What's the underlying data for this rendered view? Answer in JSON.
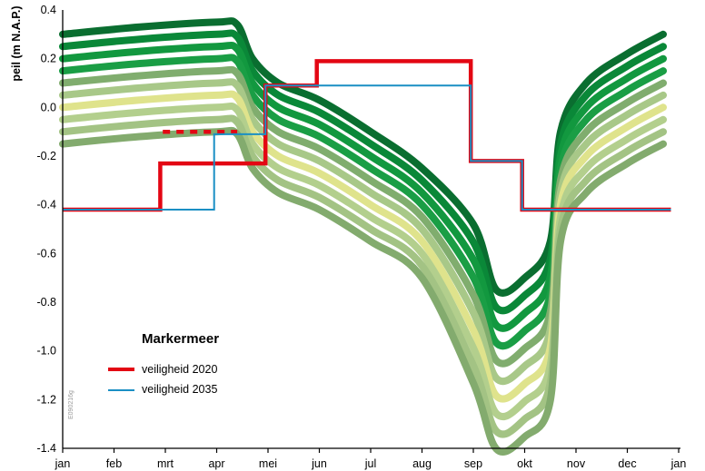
{
  "chart_data": {
    "type": "line",
    "title": "",
    "ylabel": "peil (m N.A.P.)",
    "xlabel": "",
    "ylim": [
      -1.4,
      0.4
    ],
    "yticks": [
      "0.4",
      "0.2",
      "0.0",
      "-0.2",
      "-0.4",
      "-0.6",
      "-0.8",
      "-1.0",
      "-1.2",
      "-1.4"
    ],
    "categories": [
      "jan",
      "feb",
      "mrt",
      "apr",
      "mei",
      "jun",
      "jul",
      "aug",
      "sep",
      "okt",
      "nov",
      "dec",
      "jan"
    ],
    "legend": {
      "title": "Markermeer",
      "entries": [
        {
          "label": "veiligheid 2020",
          "color": "#e30613"
        },
        {
          "label": "veiligheid 2035",
          "color": "#1a8fc4"
        }
      ]
    },
    "image_code": "E090216g",
    "band_offsets": [
      0,
      -0.05,
      -0.1,
      -0.15,
      -0.2,
      -0.25,
      -0.3,
      -0.35,
      -0.4,
      -0.45,
      -0.5,
      -0.55,
      -0.6,
      -0.65
    ],
    "band_colors": [
      "#0a6e30",
      "#0a8838",
      "#12983f",
      "#1a9e45",
      "#80ad6e",
      "#a8c888",
      "#dfe38c",
      "#b3cf8d",
      "#a3c384",
      "#83ab6e"
    ],
    "band_keys": [
      [
        0,
        0.3
      ],
      [
        1.5,
        0.33
      ],
      [
        3,
        0.35
      ],
      [
        3.4,
        0.34
      ],
      [
        3.7,
        0.2
      ],
      [
        4.2,
        0.1
      ],
      [
        5,
        0.03
      ],
      [
        6,
        -0.1
      ],
      [
        7,
        -0.25
      ],
      [
        8,
        -0.48
      ],
      [
        8.45,
        -0.75
      ],
      [
        9,
        -0.7
      ],
      [
        9.5,
        -0.55
      ],
      [
        9.7,
        -0.1
      ],
      [
        10.2,
        0.1
      ],
      [
        11,
        0.22
      ],
      [
        11.7,
        0.3
      ]
    ],
    "series": [
      {
        "name": "veiligheid 2020",
        "color": "#e30613",
        "steps": [
          [
            0,
            -0.42
          ],
          [
            1.9,
            -0.42
          ],
          [
            1.9,
            -0.23
          ],
          [
            3.95,
            -0.23
          ],
          [
            3.95,
            0.09
          ],
          [
            4.95,
            0.09
          ],
          [
            4.95,
            0.19
          ],
          [
            7.95,
            0.19
          ],
          [
            7.95,
            -0.22
          ],
          [
            8.95,
            -0.22
          ],
          [
            8.95,
            -0.42
          ],
          [
            11.85,
            -0.42
          ]
        ],
        "dashed": [
          [
            1.95,
            -0.1
          ],
          [
            3.4,
            -0.1
          ]
        ]
      },
      {
        "name": "veiligheid 2035",
        "color": "#1a8fc4",
        "steps": [
          [
            0,
            -0.42
          ],
          [
            2.95,
            -0.42
          ],
          [
            2.95,
            -0.11
          ],
          [
            3.95,
            -0.11
          ],
          [
            3.95,
            0.09
          ],
          [
            7.95,
            0.09
          ],
          [
            7.95,
            -0.22
          ],
          [
            8.95,
            -0.22
          ],
          [
            8.95,
            -0.42
          ],
          [
            11.85,
            -0.42
          ]
        ]
      }
    ]
  }
}
